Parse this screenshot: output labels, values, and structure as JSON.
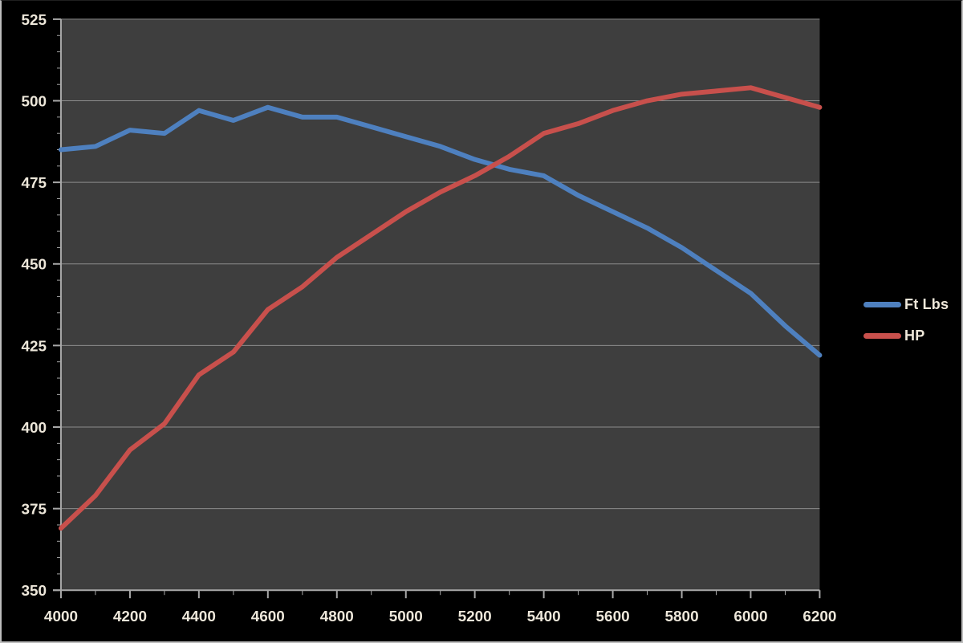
{
  "chart_data": {
    "type": "line",
    "title": "",
    "xlabel": "",
    "ylabel": "",
    "x": [
      4000,
      4100,
      4200,
      4300,
      4400,
      4500,
      4600,
      4700,
      4800,
      4900,
      5000,
      5100,
      5200,
      5300,
      5400,
      5500,
      5600,
      5700,
      5800,
      5900,
      6000,
      6100,
      6200
    ],
    "series": [
      {
        "name": "Ft Lbs",
        "color": "#4E80BF",
        "values": [
          485,
          486,
          491,
          490,
          497,
          494,
          498,
          495,
          495,
          492,
          489,
          486,
          482,
          479,
          477,
          471,
          466,
          461,
          455,
          448,
          441,
          431,
          422
        ]
      },
      {
        "name": "HP",
        "color": "#C8504C",
        "values": [
          369,
          379,
          393,
          401,
          416,
          423,
          436,
          443,
          452,
          459,
          466,
          472,
          477,
          483,
          490,
          493,
          497,
          500,
          502,
          503,
          504,
          501,
          498
        ]
      }
    ],
    "xlim": [
      4000,
      6200
    ],
    "ylim": [
      350,
      525
    ],
    "x_major_step": 200,
    "x_minor_step": 100,
    "y_major_step": 25,
    "y_minor_step": 5,
    "x_tick_labels": [
      "4000",
      "4200",
      "4400",
      "4600",
      "4800",
      "5000",
      "5200",
      "5400",
      "5600",
      "5800",
      "6000",
      "6200"
    ],
    "y_tick_labels": [
      "350",
      "375",
      "400",
      "425",
      "450",
      "475",
      "500",
      "525"
    ],
    "grid": "horizontal-only",
    "legend_position": "right",
    "plot_background": "#3E3E3E",
    "outer_background": "#000000",
    "gridline_color": "#8C8C8C",
    "axis_color": "#A8A8A8",
    "tick_label_color": "#EDE7DA"
  }
}
